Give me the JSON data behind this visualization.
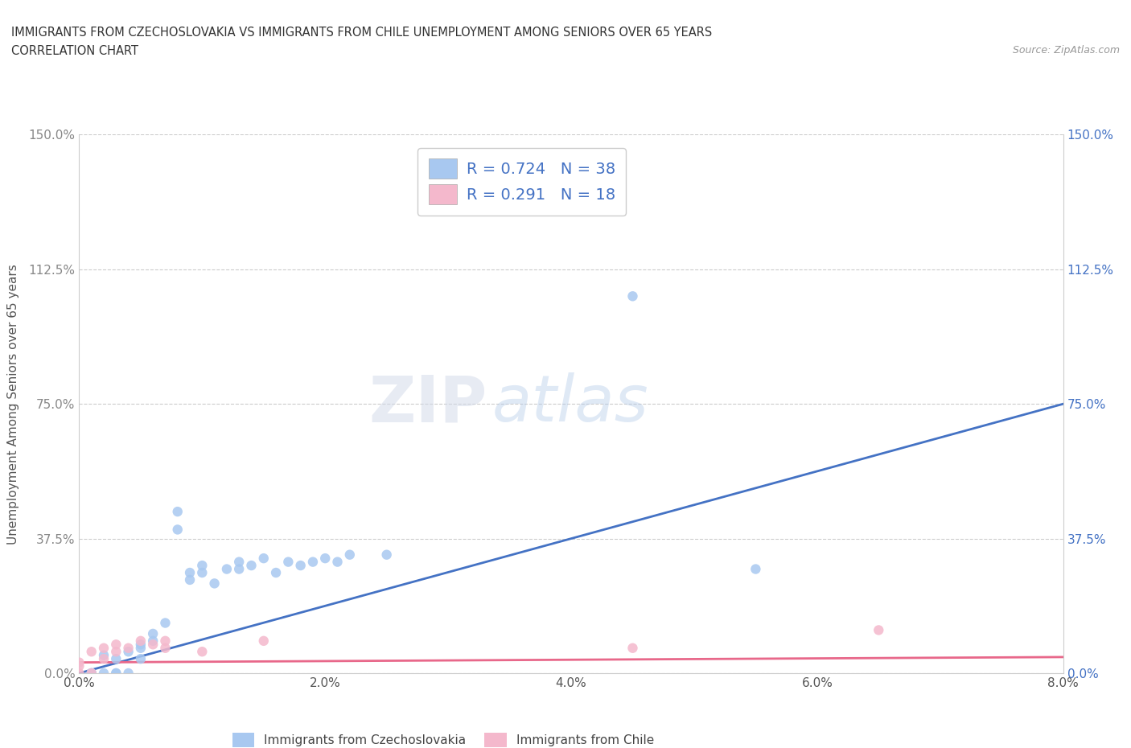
{
  "title_line1": "IMMIGRANTS FROM CZECHOSLOVAKIA VS IMMIGRANTS FROM CHILE UNEMPLOYMENT AMONG SENIORS OVER 65 YEARS",
  "title_line2": "CORRELATION CHART",
  "source": "Source: ZipAtlas.com",
  "ylabel": "Unemployment Among Seniors over 65 years",
  "xlim": [
    0.0,
    0.08
  ],
  "ylim": [
    0.0,
    1.5
  ],
  "xtick_labels": [
    "0.0%",
    "2.0%",
    "4.0%",
    "6.0%",
    "8.0%"
  ],
  "xtick_values": [
    0.0,
    0.02,
    0.04,
    0.06,
    0.08
  ],
  "ytick_labels": [
    "0.0%",
    "37.5%",
    "75.0%",
    "112.5%",
    "150.0%"
  ],
  "ytick_values": [
    0.0,
    0.375,
    0.75,
    1.125,
    1.5
  ],
  "color_czech": "#a8c8f0",
  "color_chile": "#f4b8cc",
  "line_color_czech": "#4472c4",
  "line_color_chile": "#e8688a",
  "R_czech": 0.724,
  "N_czech": 38,
  "R_chile": 0.291,
  "N_chile": 18,
  "watermark_zip": "ZIP",
  "watermark_atlas": "atlas",
  "legend_label_czech": "Immigrants from Czechoslovakia",
  "legend_label_chile": "Immigrants from Chile",
  "czech_x": [
    0.001,
    0.001,
    0.001,
    0.002,
    0.002,
    0.003,
    0.003,
    0.003,
    0.004,
    0.004,
    0.005,
    0.005,
    0.005,
    0.006,
    0.006,
    0.007,
    0.008,
    0.008,
    0.009,
    0.009,
    0.01,
    0.01,
    0.011,
    0.012,
    0.013,
    0.013,
    0.014,
    0.015,
    0.016,
    0.017,
    0.018,
    0.019,
    0.02,
    0.021,
    0.022,
    0.025,
    0.045,
    0.055
  ],
  "czech_y": [
    0.0,
    0.0,
    0.0,
    0.0,
    0.05,
    0.0,
    0.0,
    0.04,
    0.0,
    0.06,
    0.04,
    0.07,
    0.08,
    0.09,
    0.11,
    0.14,
    0.4,
    0.45,
    0.26,
    0.28,
    0.28,
    0.3,
    0.25,
    0.29,
    0.29,
    0.31,
    0.3,
    0.32,
    0.28,
    0.31,
    0.3,
    0.31,
    0.32,
    0.31,
    0.33,
    0.33,
    1.05,
    0.29
  ],
  "chile_x": [
    0.0,
    0.0,
    0.0,
    0.001,
    0.001,
    0.002,
    0.002,
    0.003,
    0.003,
    0.004,
    0.005,
    0.006,
    0.007,
    0.007,
    0.01,
    0.015,
    0.045,
    0.065
  ],
  "chile_y": [
    0.0,
    0.02,
    0.03,
    0.0,
    0.06,
    0.04,
    0.07,
    0.06,
    0.08,
    0.07,
    0.09,
    0.08,
    0.07,
    0.09,
    0.06,
    0.09,
    0.07,
    0.12
  ],
  "czech_line_x": [
    0.0,
    0.08
  ],
  "czech_line_y": [
    0.0,
    0.75
  ],
  "chile_line_x": [
    0.0,
    0.08
  ],
  "chile_line_y": [
    0.03,
    0.045
  ]
}
